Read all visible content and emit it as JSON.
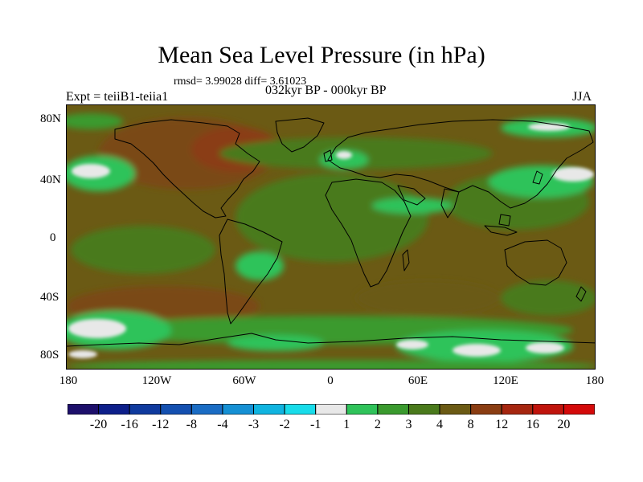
{
  "title": "Mean Sea Level Pressure (in hPa)",
  "stats": "rmsd= 3.99028 diff= 3.61023",
  "period": "032kyr BP - 000kyr BP",
  "experiment": "Expt = teiiB1-teiia1",
  "season": "JJA",
  "map": {
    "lat_ticks": [
      "80N",
      "40N",
      "0",
      "40S",
      "80S"
    ],
    "lon_ticks": [
      "180",
      "120W",
      "60W",
      "0",
      "60E",
      "120E",
      "180"
    ]
  },
  "colorbar": {
    "labels": [
      "-20",
      "-16",
      "-12",
      "-8",
      "-4",
      "-3",
      "-2",
      "-1",
      "1",
      "2",
      "3",
      "4",
      "8",
      "12",
      "16",
      "20"
    ],
    "colors": [
      "#1d0f6b",
      "#0d1f8a",
      "#0f3a9e",
      "#1450b0",
      "#1a6cc4",
      "#1590d4",
      "#10b4e0",
      "#18dcea",
      "#e8e8e8",
      "#2fc35a",
      "#3a9a2e",
      "#4a7a1c",
      "#6b5a14",
      "#8a3d12",
      "#a6260f",
      "#c0140c",
      "#d40a0a"
    ]
  }
}
